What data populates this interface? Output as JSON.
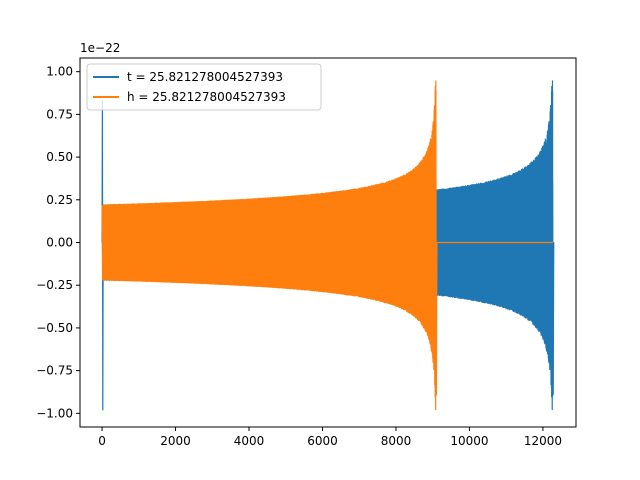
{
  "chart_data": {
    "type": "line",
    "title": "",
    "xlabel": "",
    "ylabel": "",
    "y_offset_label": "1e−22",
    "xlim": [
      -600,
      12900
    ],
    "ylim": [
      -1.08,
      1.08
    ],
    "x_ticks": [
      0,
      2000,
      4000,
      6000,
      8000,
      10000,
      12000
    ],
    "x_tick_labels": [
      "0",
      "2000",
      "4000",
      "6000",
      "8000",
      "10000",
      "12000"
    ],
    "y_ticks": [
      1.0,
      0.75,
      0.5,
      0.25,
      0.0,
      -0.25,
      -0.5,
      -0.75,
      -1.0
    ],
    "y_tick_labels": [
      "1.00",
      "0.75",
      "0.50",
      "0.25",
      "0.00",
      "−0.25",
      "−0.50",
      "−0.75",
      "−1.00"
    ],
    "grid": false,
    "legend_position": "upper-left",
    "series": [
      {
        "name": "t = 25.821278004527393",
        "color": "#1f77b4",
        "x_start": 0,
        "x_end": 12280,
        "merger_x": 12280,
        "initial_spike": 0.98,
        "early_amplitude": 0.22,
        "late_amplitude": 0.98
      },
      {
        "name": "h = 25.821278004527393",
        "color": "#ff7f0e",
        "x_start": 0,
        "x_end": 12280,
        "merger_x": 9100,
        "initial_spike": 0.0,
        "early_amplitude": 0.22,
        "late_amplitude": 0.98
      }
    ]
  }
}
